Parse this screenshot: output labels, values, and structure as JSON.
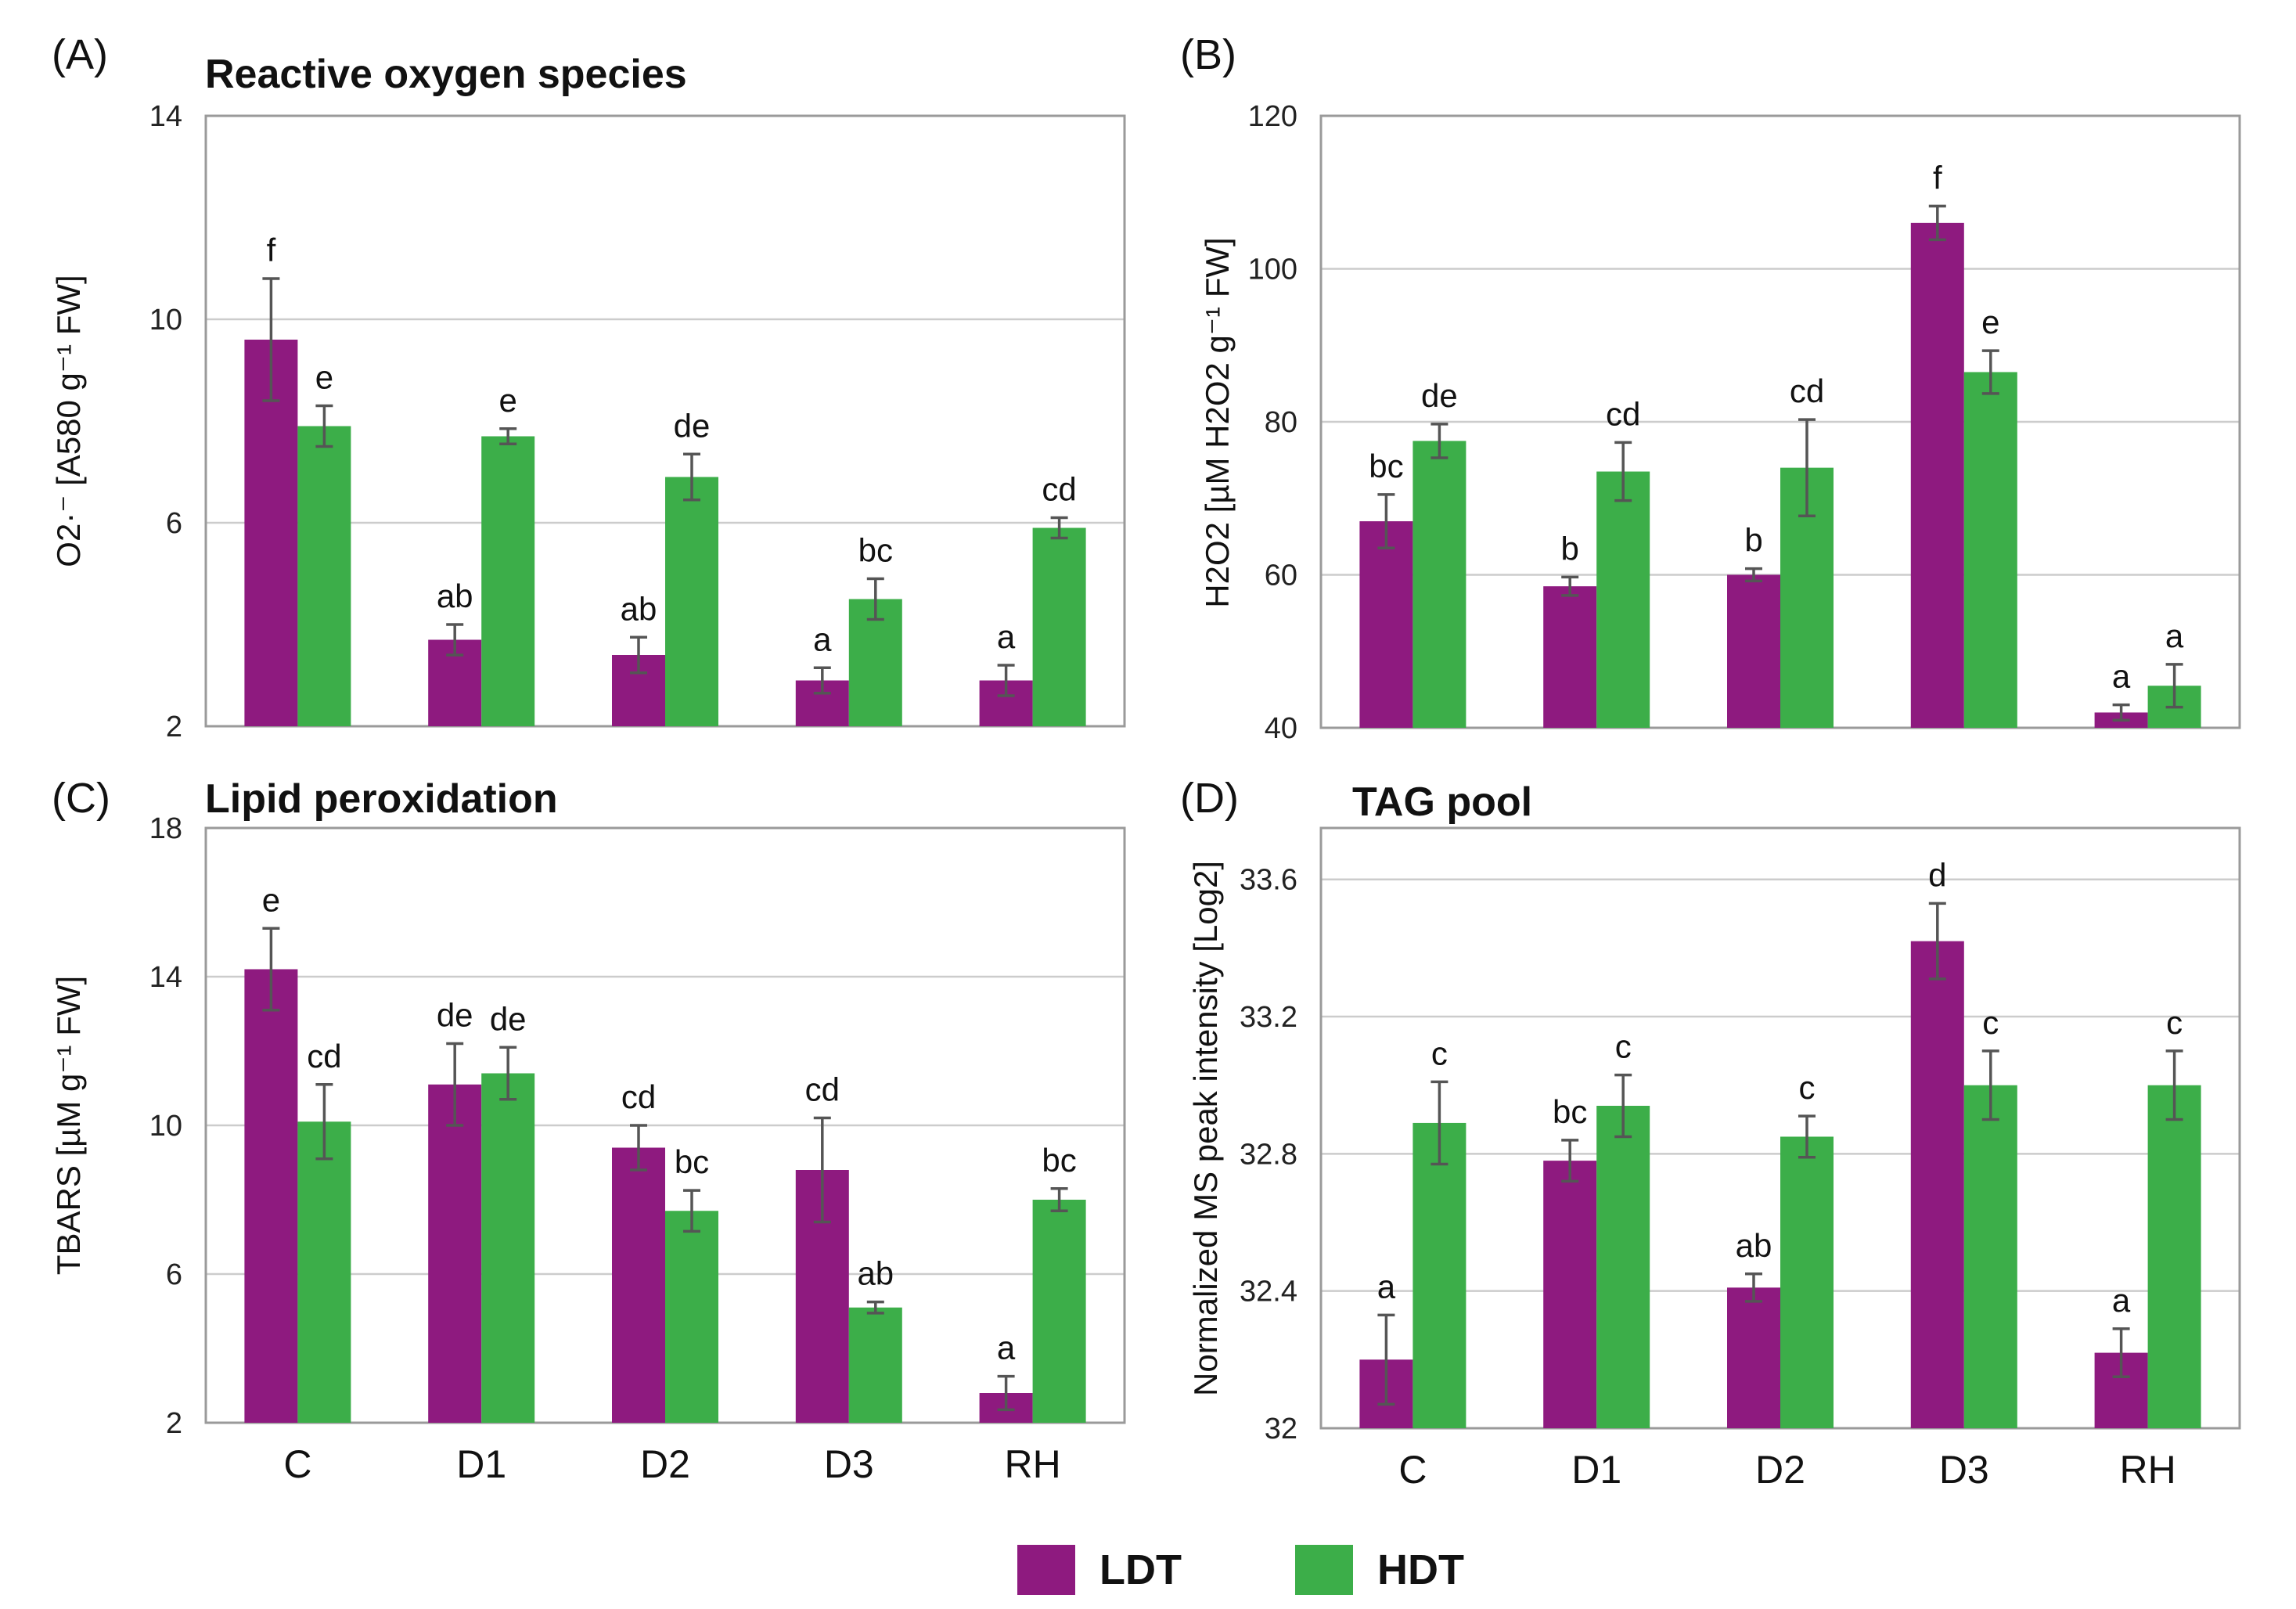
{
  "colors": {
    "LDT": "#8e1a7f",
    "HDT": "#3cae49"
  },
  "legend": {
    "items": [
      {
        "key": "LDT",
        "label": "LDT"
      },
      {
        "key": "HDT",
        "label": "HDT"
      }
    ]
  },
  "chart_data": [
    {
      "type": "bar",
      "panel": "(A)",
      "title": "Reactive oxygen species",
      "ylabel": "O2·⁻ [A580 g⁻¹ FW]",
      "yticks": [
        2,
        6,
        10,
        14
      ],
      "ylim": [
        2,
        14
      ],
      "categories": [
        "C",
        "D1",
        "D2",
        "D3",
        "RH"
      ],
      "show_categories": false,
      "series": [
        {
          "name": "LDT",
          "values": [
            9.6,
            3.7,
            3.4,
            2.9,
            2.9
          ],
          "errors": [
            1.2,
            0.3,
            0.35,
            0.25,
            0.3
          ],
          "letters": [
            "f",
            "ab",
            "ab",
            "a",
            "a"
          ]
        },
        {
          "name": "HDT",
          "values": [
            7.9,
            7.7,
            6.9,
            4.5,
            5.9
          ],
          "errors": [
            0.4,
            0.15,
            0.45,
            0.4,
            0.2
          ],
          "letters": [
            "e",
            "e",
            "de",
            "bc",
            "cd"
          ]
        }
      ]
    },
    {
      "type": "bar",
      "panel": "(B)",
      "title": "",
      "ylabel": "H2O2 [µM H2O2 g⁻¹ FW]",
      "yticks": [
        40,
        60,
        80,
        100,
        120
      ],
      "ylim": [
        40,
        120
      ],
      "categories": [
        "C",
        "D1",
        "D2",
        "D3",
        "RH"
      ],
      "show_categories": false,
      "series": [
        {
          "name": "LDT",
          "values": [
            67,
            58.5,
            60,
            106,
            42
          ],
          "errors": [
            3.5,
            1.2,
            0.8,
            2.2,
            1
          ],
          "letters": [
            "bc",
            "b",
            "b",
            "f",
            "a"
          ]
        },
        {
          "name": "HDT",
          "values": [
            77.5,
            73.5,
            74,
            86.5,
            45.5
          ],
          "errors": [
            2.2,
            3.8,
            6.3,
            2.8,
            2.8
          ],
          "letters": [
            "de",
            "cd",
            "cd",
            "e",
            "a"
          ]
        }
      ]
    },
    {
      "type": "bar",
      "panel": "(C)",
      "title": "Lipid peroxidation",
      "ylabel": "TBARS [µM g⁻¹ FW]",
      "yticks": [
        2,
        6,
        10,
        14,
        18
      ],
      "ylim": [
        2,
        18
      ],
      "categories": [
        "C",
        "D1",
        "D2",
        "D3",
        "RH"
      ],
      "show_categories": true,
      "series": [
        {
          "name": "LDT",
          "values": [
            14.2,
            11.1,
            9.4,
            8.8,
            2.8
          ],
          "errors": [
            1.1,
            1.1,
            0.6,
            1.4,
            0.45
          ],
          "letters": [
            "e",
            "de",
            "cd",
            "cd",
            "a"
          ]
        },
        {
          "name": "HDT",
          "values": [
            10.1,
            11.4,
            7.7,
            5.1,
            8
          ],
          "errors": [
            1,
            0.7,
            0.55,
            0.15,
            0.3
          ],
          "letters": [
            "cd",
            "de",
            "bc",
            "ab",
            "bc"
          ]
        }
      ]
    },
    {
      "type": "bar",
      "panel": "(D)",
      "title": "TAG pool",
      "ylabel": "Normalized MS peak intensity [Log2]",
      "yticks": [
        32,
        32.4,
        32.8,
        33.2,
        33.6
      ],
      "ylim": [
        32,
        33.75
      ],
      "categories": [
        "C",
        "D1",
        "D2",
        "D3",
        "RH"
      ],
      "show_categories": true,
      "series": [
        {
          "name": "LDT",
          "values": [
            32.2,
            32.78,
            32.41,
            33.42,
            32.22
          ],
          "errors": [
            0.13,
            0.06,
            0.04,
            0.11,
            0.07
          ],
          "letters": [
            "a",
            "bc",
            "ab",
            "d",
            "a"
          ]
        },
        {
          "name": "HDT",
          "values": [
            32.89,
            32.94,
            32.85,
            33,
            33
          ],
          "errors": [
            0.12,
            0.09,
            0.06,
            0.1,
            0.1
          ],
          "letters": [
            "c",
            "c",
            "c",
            "c",
            "c"
          ]
        }
      ]
    }
  ]
}
